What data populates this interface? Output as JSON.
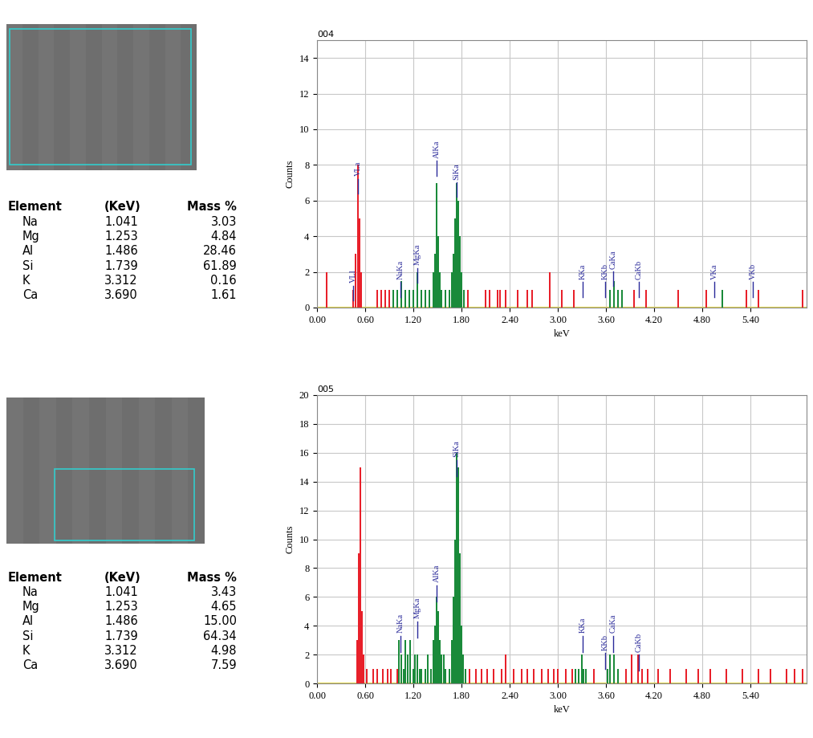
{
  "tables": [
    {
      "header": [
        "Element",
        "(KeV)",
        "Mass %"
      ],
      "rows": [
        [
          "Na",
          "1.041",
          "3.03"
        ],
        [
          "Mg",
          "1.253",
          "4.84"
        ],
        [
          "Al",
          "1.486",
          "28.46"
        ],
        [
          "Si",
          "1.739",
          "61.89"
        ],
        [
          "K",
          "3.312",
          "0.16"
        ],
        [
          "Ca",
          "3.690",
          "1.61"
        ]
      ]
    },
    {
      "header": [
        "Element",
        "(KeV)",
        "Mass %"
      ],
      "rows": [
        [
          "Na",
          "1.041",
          "3.43"
        ],
        [
          "Mg",
          "1.253",
          "4.65"
        ],
        [
          "Al",
          "1.486",
          "15.00"
        ],
        [
          "Si",
          "1.739",
          "64.34"
        ],
        [
          "K",
          "3.312",
          "4.98"
        ],
        [
          "Ca",
          "3.690",
          "7.59"
        ]
      ]
    }
  ],
  "chart_data": [
    {
      "type": "bar",
      "title": "004",
      "x_label": "keV",
      "y_label": "Counts",
      "grid": true,
      "xlim": [
        0,
        6.1
      ],
      "xticks": [
        {
          "value": 0,
          "label": "0.00"
        },
        {
          "value": 0.6,
          "label": "0.60"
        },
        {
          "value": 1.2,
          "label": "1.20"
        },
        {
          "value": 1.8,
          "label": "1.80"
        },
        {
          "value": 2.4,
          "label": "2.40"
        },
        {
          "value": 3.0,
          "label": "3.00"
        },
        {
          "value": 3.6,
          "label": "3.60"
        },
        {
          "value": 4.2,
          "label": "4.20"
        },
        {
          "value": 4.8,
          "label": "4.80"
        },
        {
          "value": 5.4,
          "label": "5.40"
        }
      ],
      "ylim": [
        0,
        15
      ],
      "yticks": [
        0,
        2,
        4,
        6,
        8,
        10,
        12,
        14
      ],
      "series": [
        {
          "color": "#e8202a",
          "x": [
            0.12,
            0.45,
            0.48,
            0.51,
            0.53,
            0.55,
            0.75,
            0.8,
            0.85,
            0.9,
            1.88,
            2.1,
            2.15,
            2.25,
            2.28,
            2.35,
            2.5,
            2.62,
            2.68,
            2.9,
            3.05,
            3.2,
            3.95,
            4.1,
            4.5,
            4.85,
            5.35,
            5.5,
            6.05
          ],
          "values": [
            2,
            1,
            3,
            8,
            5,
            2,
            1,
            1,
            1,
            1,
            1,
            1,
            1,
            1,
            1,
            1,
            1,
            1,
            1,
            2,
            1,
            1,
            1,
            1,
            1,
            1,
            1,
            1,
            1
          ]
        },
        {
          "color": "#1a8a3a",
          "x": [
            0.95,
            1.0,
            1.05,
            1.1,
            1.15,
            1.2,
            1.25,
            1.3,
            1.35,
            1.4,
            1.45,
            1.47,
            1.49,
            1.51,
            1.53,
            1.55,
            1.6,
            1.65,
            1.68,
            1.7,
            1.72,
            1.74,
            1.76,
            1.78,
            1.8,
            1.83,
            3.65,
            3.7,
            3.75,
            3.8,
            5.05
          ],
          "values": [
            1,
            1,
            1.5,
            1,
            1,
            1,
            2,
            1,
            1,
            1,
            2,
            3,
            7,
            4,
            2,
            1,
            1,
            1,
            2,
            3,
            5,
            7,
            6,
            4,
            2,
            1,
            1,
            1.5,
            1,
            1,
            1
          ]
        }
      ],
      "annotations": [
        {
          "text": "VLl",
          "x": 0.45,
          "y": 0.4
        },
        {
          "text": "VLa",
          "x": 0.51,
          "y": 6.4
        },
        {
          "text": "NaKa",
          "x": 1.04,
          "y": 0.6
        },
        {
          "text": "MgKa",
          "x": 1.25,
          "y": 1.4
        },
        {
          "text": "AlKa",
          "x": 1.49,
          "y": 7.4
        },
        {
          "text": "SiKa",
          "x": 1.74,
          "y": 6.2
        },
        {
          "text": "KKa",
          "x": 3.31,
          "y": 0.6
        },
        {
          "text": "KKb",
          "x": 3.59,
          "y": 0.6
        },
        {
          "text": "CaKa",
          "x": 3.69,
          "y": 1.2
        },
        {
          "text": "CaKb",
          "x": 4.01,
          "y": 0.6
        },
        {
          "text": "VKa",
          "x": 4.95,
          "y": 0.6
        },
        {
          "text": "VKb",
          "x": 5.43,
          "y": 0.6
        }
      ]
    },
    {
      "type": "bar",
      "title": "005",
      "x_label": "keV",
      "y_label": "Counts",
      "grid": true,
      "xlim": [
        0,
        6.1
      ],
      "xticks": [
        {
          "value": 0,
          "label": "0.00"
        },
        {
          "value": 0.6,
          "label": "0.60"
        },
        {
          "value": 1.2,
          "label": "1.20"
        },
        {
          "value": 1.8,
          "label": "1.80"
        },
        {
          "value": 2.4,
          "label": "2.40"
        },
        {
          "value": 3.0,
          "label": "3.00"
        },
        {
          "value": 3.6,
          "label": "3.60"
        },
        {
          "value": 4.2,
          "label": "4.20"
        },
        {
          "value": 4.8,
          "label": "4.80"
        },
        {
          "value": 5.4,
          "label": "5.40"
        }
      ],
      "ylim": [
        0,
        20
      ],
      "yticks": [
        0,
        2,
        4,
        6,
        8,
        10,
        12,
        14,
        16,
        18,
        20
      ],
      "series": [
        {
          "color": "#e8202a",
          "x": [
            0.5,
            0.52,
            0.54,
            0.56,
            0.58,
            0.62,
            0.7,
            0.75,
            0.82,
            0.88,
            0.92,
            1.0,
            1.9,
            1.98,
            2.05,
            2.12,
            2.2,
            2.3,
            2.35,
            2.45,
            2.55,
            2.62,
            2.7,
            2.8,
            2.88,
            2.95,
            3.0,
            3.1,
            3.18,
            3.45,
            3.85,
            3.92,
            4.0,
            4.05,
            4.12,
            4.25,
            4.4,
            4.6,
            4.75,
            4.9,
            5.1,
            5.3,
            5.5,
            5.65,
            5.85,
            5.95,
            6.05
          ],
          "values": [
            3,
            9,
            15,
            5,
            2,
            1,
            1,
            1,
            1,
            1,
            1,
            1,
            1,
            1,
            1,
            1,
            1,
            1,
            2,
            1,
            1,
            1,
            1,
            1,
            1,
            1,
            1,
            1,
            1,
            1,
            1,
            2,
            2,
            1,
            1,
            1,
            1,
            1,
            1,
            1,
            1,
            1,
            1,
            1,
            1,
            1,
            1
          ]
        },
        {
          "color": "#1a8a3a",
          "x": [
            1.02,
            1.05,
            1.08,
            1.1,
            1.13,
            1.16,
            1.2,
            1.22,
            1.25,
            1.28,
            1.3,
            1.35,
            1.38,
            1.42,
            1.45,
            1.47,
            1.49,
            1.51,
            1.53,
            1.55,
            1.58,
            1.6,
            1.65,
            1.68,
            1.7,
            1.72,
            1.74,
            1.76,
            1.78,
            1.8,
            1.82,
            1.85,
            3.22,
            3.26,
            3.3,
            3.32,
            3.35,
            3.62,
            3.65,
            3.7,
            3.75
          ],
          "values": [
            3,
            2,
            1,
            3,
            2,
            3,
            1,
            2,
            2,
            1,
            1,
            1,
            2,
            1,
            3,
            4,
            6,
            5,
            3,
            2,
            2,
            1,
            1,
            3,
            6,
            10,
            16,
            15,
            9,
            4,
            2,
            1,
            1,
            1,
            2,
            1,
            1,
            1,
            2,
            2,
            1
          ]
        }
      ],
      "annotations": [
        {
          "text": "NaKa",
          "x": 1.04,
          "y": 2.2
        },
        {
          "text": "MgKa",
          "x": 1.25,
          "y": 3.2
        },
        {
          "text": "AlKa",
          "x": 1.49,
          "y": 5.7
        },
        {
          "text": "SiKa",
          "x": 1.74,
          "y": 14.4
        },
        {
          "text": "KKa",
          "x": 3.31,
          "y": 2.2
        },
        {
          "text": "KKb",
          "x": 3.59,
          "y": 1.0
        },
        {
          "text": "CaKa",
          "x": 3.69,
          "y": 2.2
        },
        {
          "text": "CaKb",
          "x": 4.01,
          "y": 0.9
        }
      ]
    }
  ]
}
